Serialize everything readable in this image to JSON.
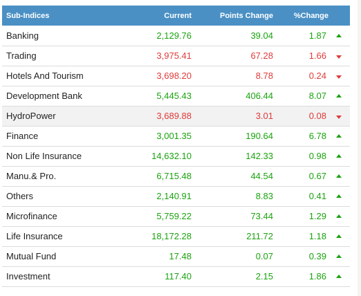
{
  "table": {
    "headers": [
      "Sub-Indices",
      "Current",
      "Points Change",
      "%Change"
    ],
    "rows": [
      {
        "name": "Banking",
        "current": "2,129.76",
        "points": "39.04",
        "pct": "1.87",
        "dir": "up"
      },
      {
        "name": "Trading",
        "current": "3,975.41",
        "points": "67.28",
        "pct": "1.66",
        "dir": "down"
      },
      {
        "name": "Hotels And Tourism",
        "current": "3,698.20",
        "points": "8.78",
        "pct": "0.24",
        "dir": "down"
      },
      {
        "name": "Development Bank",
        "current": "5,445.43",
        "points": "406.44",
        "pct": "8.07",
        "dir": "up"
      },
      {
        "name": "HydroPower",
        "current": "3,689.88",
        "points": "3.01",
        "pct": "0.08",
        "dir": "down"
      },
      {
        "name": "Finance",
        "current": "3,001.35",
        "points": "190.64",
        "pct": "6.78",
        "dir": "up"
      },
      {
        "name": "Non Life Insurance",
        "current": "14,632.10",
        "points": "142.33",
        "pct": "0.98",
        "dir": "up"
      },
      {
        "name": "Manu.& Pro.",
        "current": "6,715.48",
        "points": "44.54",
        "pct": "0.67",
        "dir": "up"
      },
      {
        "name": "Others",
        "current": "2,140.91",
        "points": "8.83",
        "pct": "0.41",
        "dir": "up"
      },
      {
        "name": "Microfinance",
        "current": "5,759.22",
        "points": "73.44",
        "pct": "1.29",
        "dir": "up"
      },
      {
        "name": "Life Insurance",
        "current": "18,172.28",
        "points": "211.72",
        "pct": "1.18",
        "dir": "up"
      },
      {
        "name": "Mutual Fund",
        "current": "17.48",
        "points": "0.07",
        "pct": "0.39",
        "dir": "up"
      },
      {
        "name": "Investment",
        "current": "117.40",
        "points": "2.15",
        "pct": "1.86",
        "dir": "up"
      }
    ],
    "highlighted_row": 4
  },
  "colors": {
    "header_bg": "#4a90c5",
    "up": "#1aa30f",
    "down": "#e03a3a"
  },
  "icons": {
    "up": "triangle-up-icon",
    "down": "triangle-down-icon"
  }
}
